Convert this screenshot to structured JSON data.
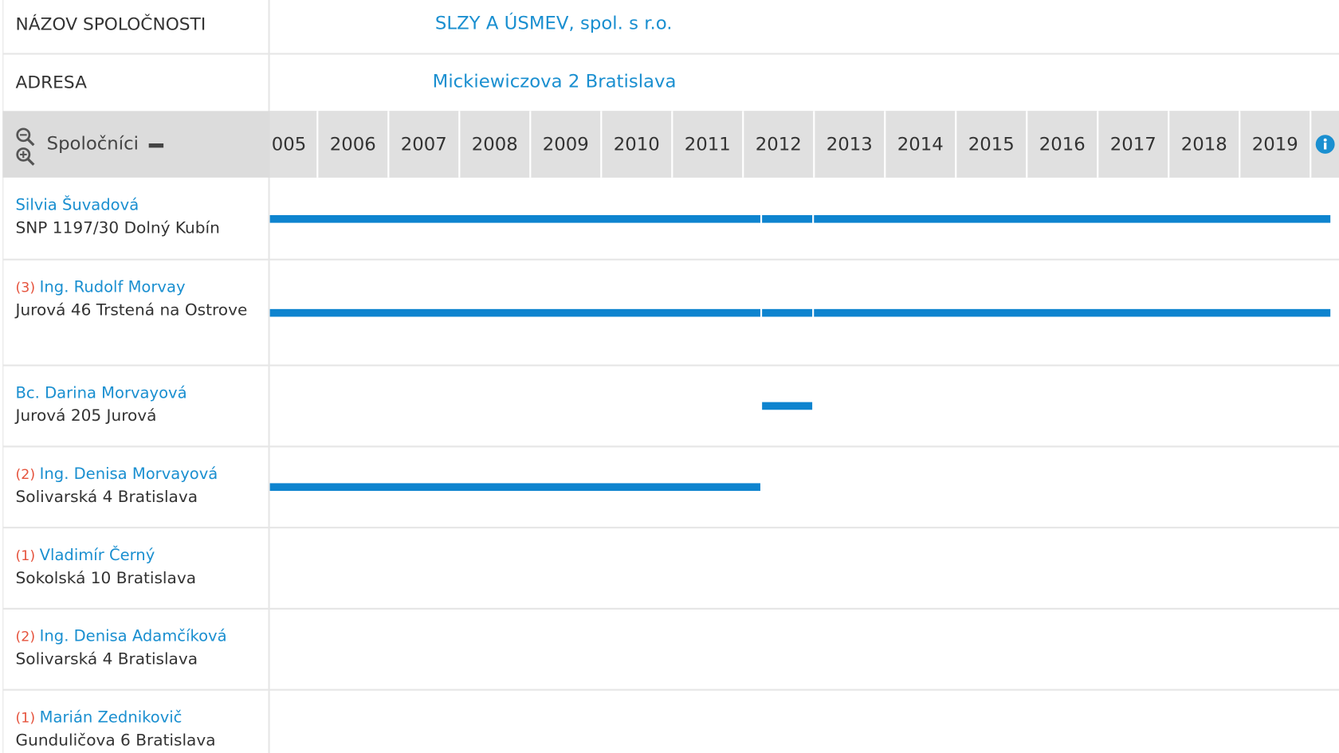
{
  "company": {
    "label": "NÁZOV SPOLOČNOSTI",
    "value": "SLZY A ÚSMEV, spol. s r.o."
  },
  "address": {
    "label": "ADRESA",
    "value": "Mickiewiczova 2 Bratislava"
  },
  "timeline": {
    "header": "Spoločníci",
    "years": [
      "005",
      "2006",
      "2007",
      "2008",
      "2009",
      "2010",
      "2011",
      "2012",
      "2013",
      "2014",
      "2015",
      "2016",
      "2017",
      "2018",
      "2019"
    ],
    "partners": [
      {
        "name": "Silvia Šuvadová",
        "address": "SNP 1197/30 Dolný Kubín",
        "periods": [
          [
            2005.3,
            2012.27
          ],
          [
            2012.27,
            2013
          ],
          [
            2013,
            2020.3
          ]
        ]
      },
      {
        "count": "(3)",
        "name": "Ing. Rudolf Morvay",
        "address": "Jurová 46 Trstená na Ostrove",
        "periods": [
          [
            2005.3,
            2012.27
          ],
          [
            2012.27,
            2013
          ],
          [
            2013,
            2020.3
          ]
        ]
      },
      {
        "name": "Bc. Darina Morvayová",
        "address": "Jurová 205 Jurová",
        "periods": [
          [
            2012.27,
            2013
          ]
        ]
      },
      {
        "count": "(2)",
        "name": "Ing. Denisa Morvayová",
        "address": "Solivarská 4 Bratislava",
        "periods": [
          [
            2005.3,
            2012.27
          ]
        ]
      },
      {
        "count": "(1)",
        "name": "Vladimír Černý",
        "address": "Sokolská 10 Bratislava",
        "periods": []
      },
      {
        "count": "(2)",
        "name": "Ing. Denisa Adamčíková",
        "address": "Solivarská 4 Bratislava",
        "periods": []
      },
      {
        "count": "(1)",
        "name": "Marián Zednikovič",
        "address": "Gunduličova 6 Bratislava",
        "periods": []
      }
    ]
  }
}
